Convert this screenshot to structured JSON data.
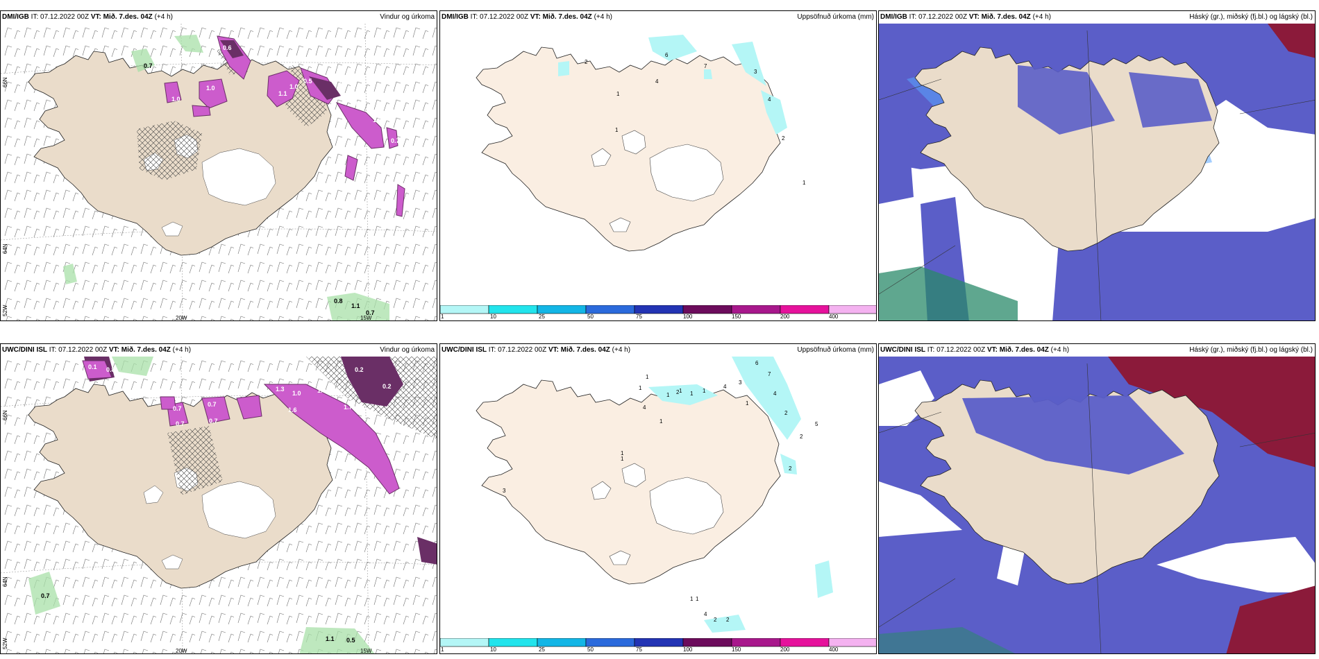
{
  "time_info": {
    "init_prefix": "IT: 07.12.2022 00Z",
    "valid_label": "VT: Mið. 7.des. 04Z",
    "lead": "(+4 h)"
  },
  "panels": [
    {
      "model": "DMI/IGB",
      "title": "Vindur og úrkoma",
      "type": "wind-precip"
    },
    {
      "model": "DMI/IGB",
      "title": "Uppsöfnuð úrkoma (mm)",
      "type": "accum-precip"
    },
    {
      "model": "DMI/IGB",
      "title": "Háský (gr.), miðský (fj.bl.) og lágský (bl.)",
      "type": "cloud"
    },
    {
      "model": "UWC/DINI ISL",
      "title": "Vindur og úrkoma",
      "type": "wind-precip"
    },
    {
      "model": "UWC/DINI ISL",
      "title": "Uppsöfnuð úrkoma (mm)",
      "type": "accum-precip"
    },
    {
      "model": "UWC/DINI ISL",
      "title": "Háský (gr.), miðský (fj.bl.) og lágský (bl.)",
      "type": "cloud"
    }
  ],
  "precip_colorbar": {
    "ticks": [
      "1",
      "10",
      "25",
      "50",
      "75",
      "100",
      "150",
      "200",
      "400"
    ],
    "colors": [
      "#b4f6f6",
      "#22e4ec",
      "#13b6e6",
      "#2b6adc",
      "#2334b4",
      "#6c0c5c",
      "#a8188c",
      "#e6129c",
      "#f4b2f0"
    ]
  },
  "axis_labels": {
    "lat_66": "66N",
    "lat_64": "64N",
    "lat_52": "52W",
    "lon_20": "20W",
    "lon_15": "15W"
  },
  "wind_precip_labels": {
    "top": [
      "0.7",
      "0.6",
      "1.0",
      "1.0",
      "1.1",
      "1.0",
      "0.5",
      "0.6",
      "1.1",
      "1.0",
      "0.7",
      "0.8",
      "1.1",
      "0.7"
    ],
    "bottom": [
      "0.1",
      "0.8",
      "1.3",
      "1.3",
      "1.0",
      "1.6",
      "1.71",
      "1.0",
      "0.2",
      "0.2",
      "1.0",
      "0.7",
      "0.7",
      "0.7",
      "0.7",
      "0.7",
      "1.1",
      "0.5"
    ]
  },
  "accum_labels": {
    "top": [
      "2",
      "6",
      "7",
      "4",
      "3",
      "4",
      "2",
      "1",
      "1",
      "1"
    ],
    "bottom": [
      "6",
      "7",
      "4",
      "3",
      "4",
      "2",
      "1",
      "1",
      "1",
      "1",
      "1",
      "1",
      "2",
      "1",
      "4",
      "2",
      "5",
      "2",
      "1",
      "1",
      "1",
      "4",
      "2",
      "2",
      "1",
      "3",
      "1"
    ]
  },
  "colors": {
    "land": "#eadcca",
    "precip_violet": "#cc5ccc",
    "precip_dark": "#6a2f66",
    "cloud_mid": "#5b5ec8",
    "cloud_high": "#8b1a3a",
    "cloud_low": "#2a8a6a"
  }
}
